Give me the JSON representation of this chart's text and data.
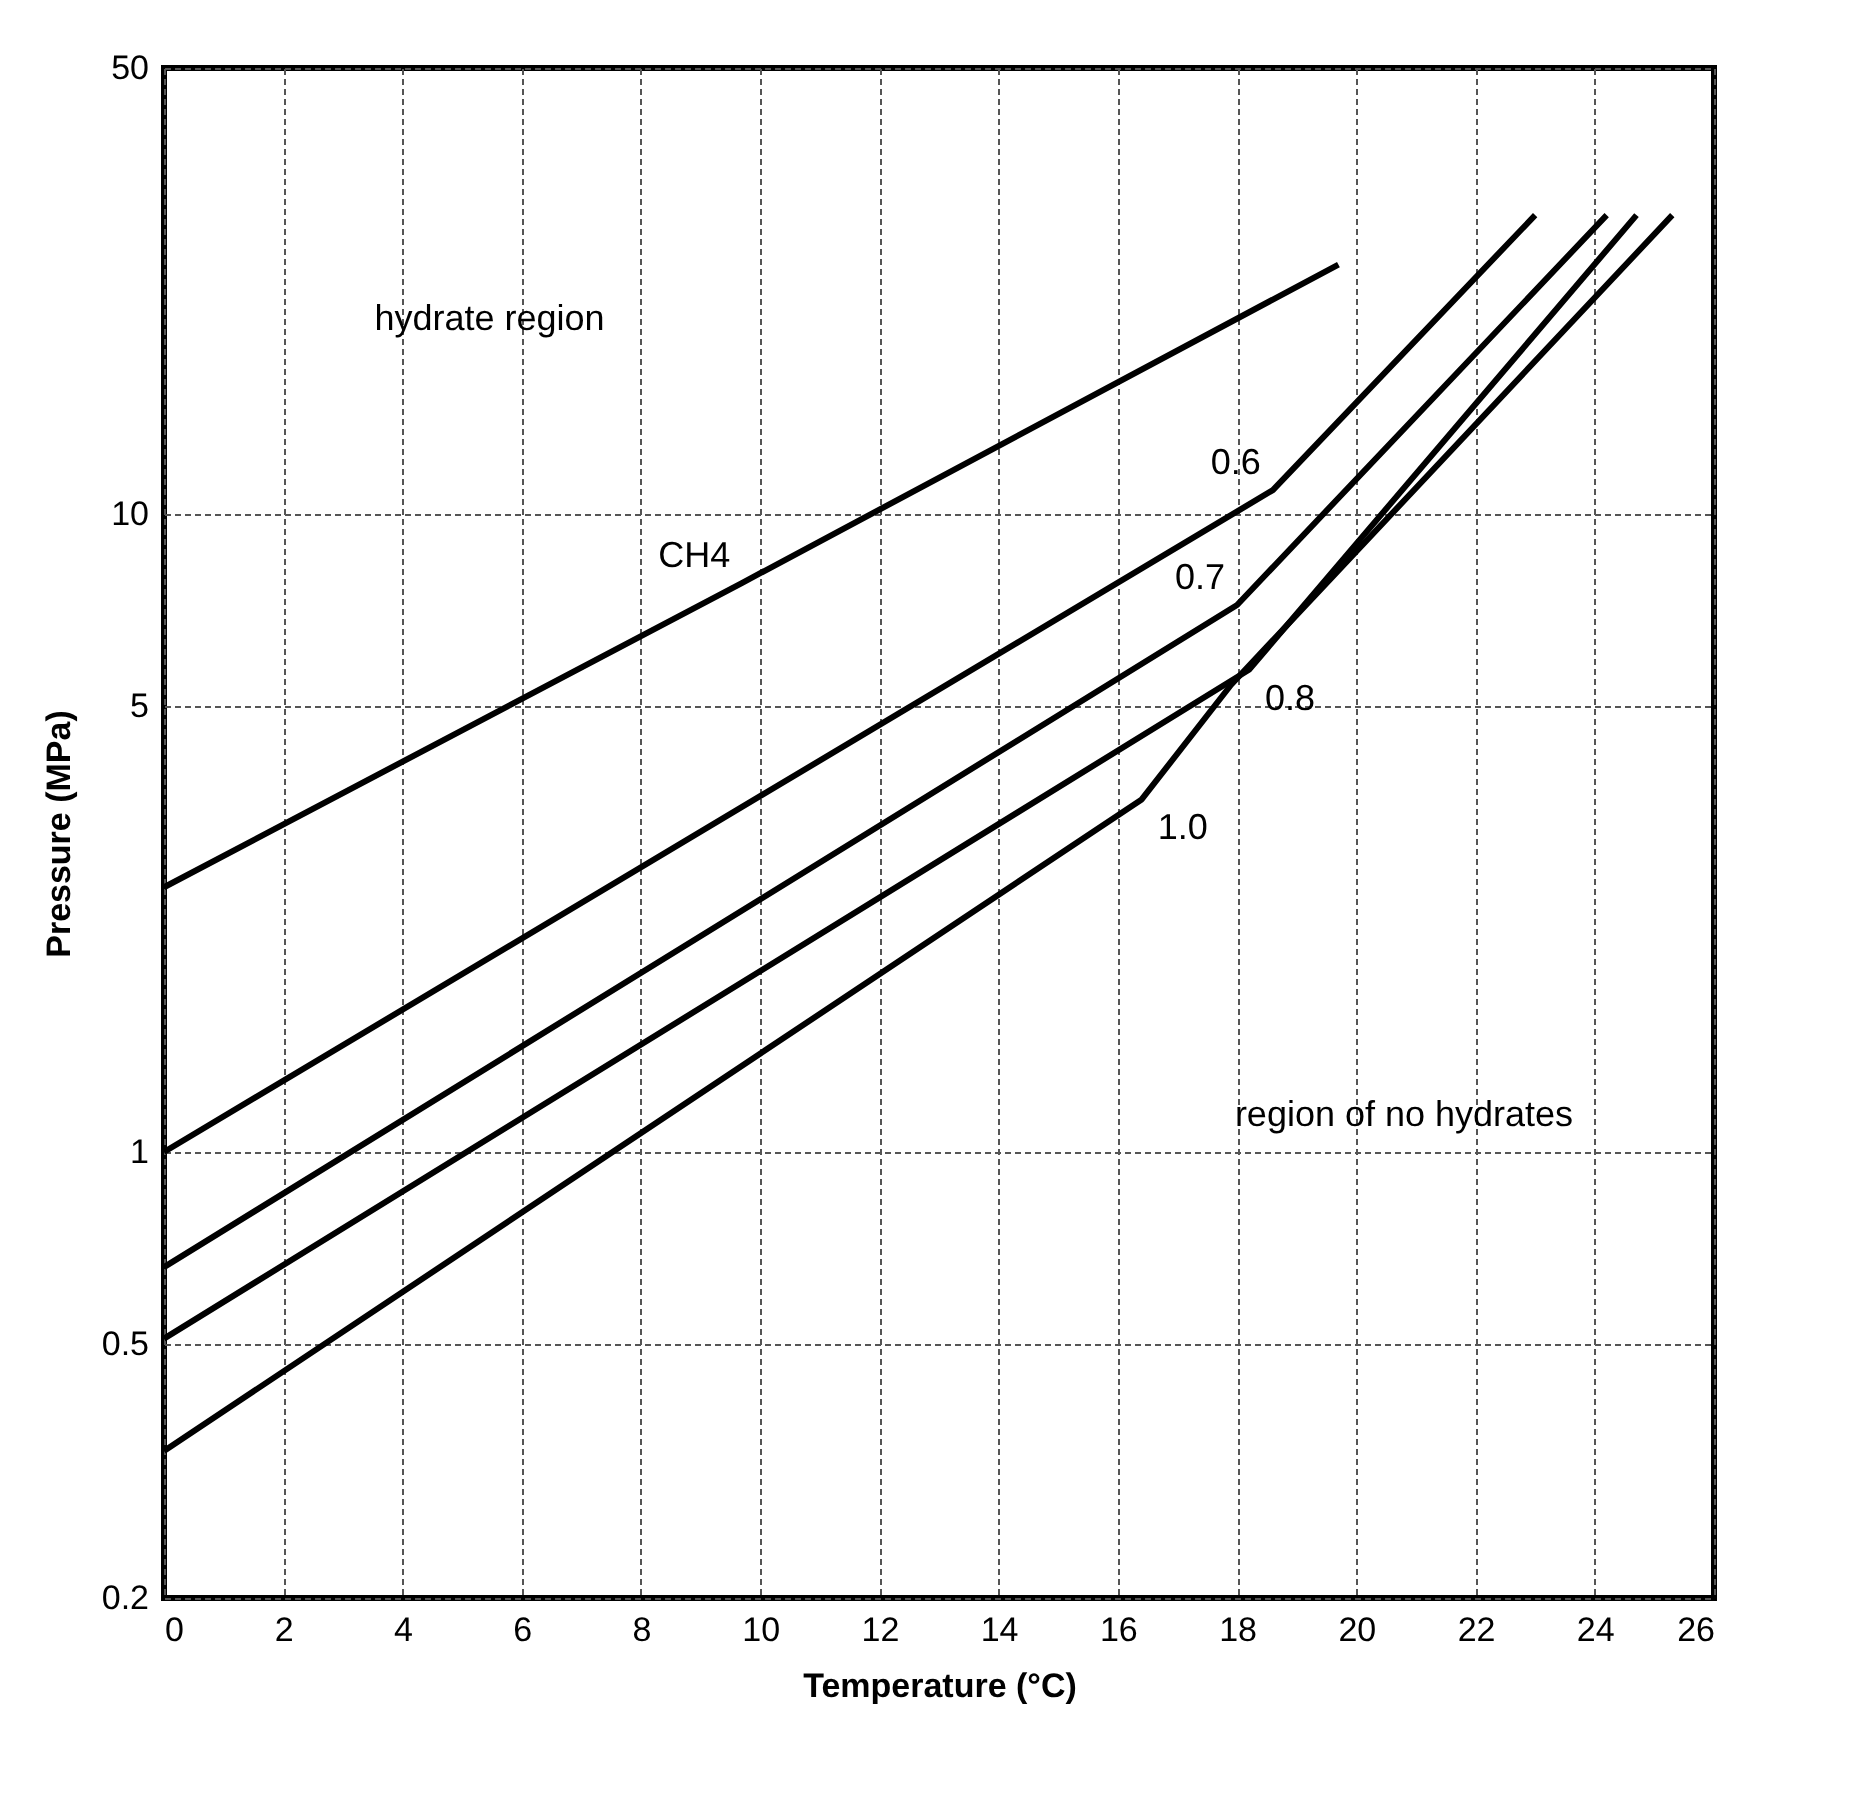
{
  "chart_data": {
    "type": "line",
    "xlabel": "Temperature (°C)",
    "ylabel": "Pressure (MPa)",
    "xlim": [
      0,
      26
    ],
    "xticks": [
      0,
      2,
      4,
      6,
      8,
      10,
      12,
      14,
      16,
      18,
      20,
      22,
      24,
      26
    ],
    "ylim": [
      0.2,
      50
    ],
    "yticks": [
      0.2,
      0.5,
      1,
      5,
      10,
      50
    ],
    "log": "y",
    "grid": true,
    "legend": false,
    "marker": "none",
    "line_style": "solid",
    "series": [
      {
        "name": "CH4",
        "color": "#000000",
        "x": [
          0,
          9.7,
          19.7
        ],
        "values": [
          2.6,
          7.8,
          24.6
        ]
      },
      {
        "name": "0.6",
        "color": "#000000",
        "x": [
          0,
          18.6,
          23.0
        ],
        "values": [
          1.0,
          10.9,
          29.4
        ]
      },
      {
        "name": "0.7",
        "color": "#000000",
        "x": [
          0,
          18.0,
          24.2
        ],
        "values": [
          0.66,
          7.2,
          29.4
        ]
      },
      {
        "name": "0.8",
        "color": "#000000",
        "x": [
          0,
          18.2,
          24.7
        ],
        "values": [
          0.51,
          5.7,
          29.4
        ]
      },
      {
        "name": "1.0",
        "color": "#000000",
        "x": [
          0,
          16.4,
          17.9,
          25.3
        ],
        "values": [
          0.34,
          3.57,
          5.4,
          29.4
        ]
      }
    ],
    "annotations": [
      "hydrate region",
      "region of no hydrates"
    ]
  }
}
